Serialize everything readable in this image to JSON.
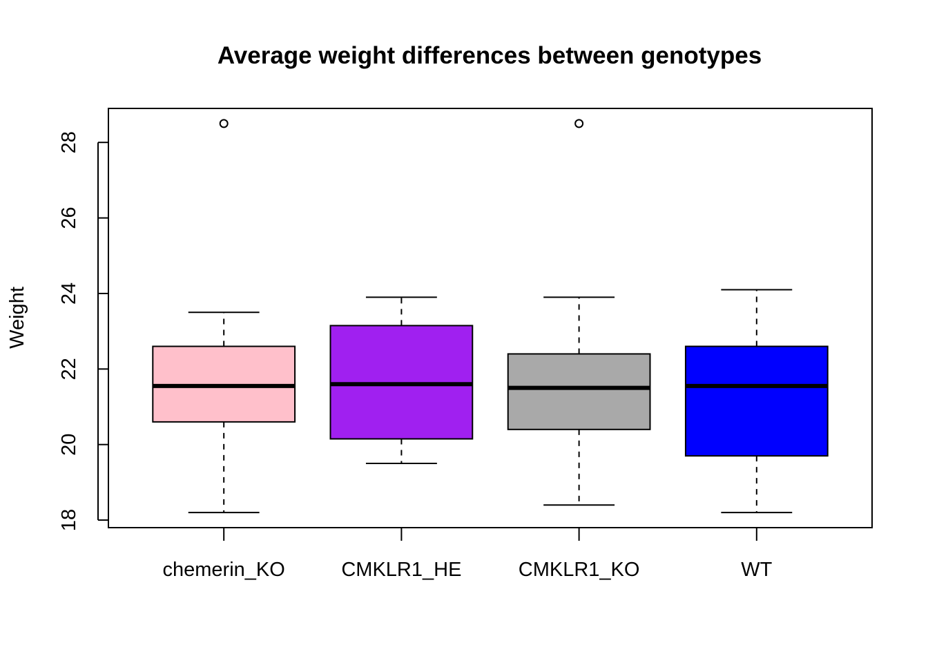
{
  "chart_data": {
    "type": "boxplot",
    "title": "Average weight differences between genotypes",
    "xlabel": "",
    "ylabel": "Weight",
    "ylim": [
      17.8,
      28.9
    ],
    "yticks": [
      "18",
      "20",
      "22",
      "24",
      "26",
      "28"
    ],
    "grid": false,
    "categories": [
      "chemerin_KO",
      "CMKLR1_HE",
      "CMKLR1_KO",
      "WT"
    ],
    "boxes": [
      {
        "color": "#FFC0CB",
        "whisker_low": 18.2,
        "q1": 20.6,
        "median": 21.55,
        "q3": 22.6,
        "whisker_high": 23.5,
        "outliers": [
          28.5
        ]
      },
      {
        "color": "#A020F0",
        "whisker_low": 19.5,
        "q1": 20.15,
        "median": 21.6,
        "q3": 23.15,
        "whisker_high": 23.9,
        "outliers": []
      },
      {
        "color": "#A9A9A9",
        "whisker_low": 18.4,
        "q1": 20.4,
        "median": 21.5,
        "q3": 22.4,
        "whisker_high": 23.9,
        "outliers": [
          28.5
        ]
      },
      {
        "color": "#0000FF",
        "whisker_low": 18.2,
        "q1": 19.7,
        "median": 21.55,
        "q3": 22.6,
        "whisker_high": 24.1,
        "outliers": []
      }
    ]
  }
}
